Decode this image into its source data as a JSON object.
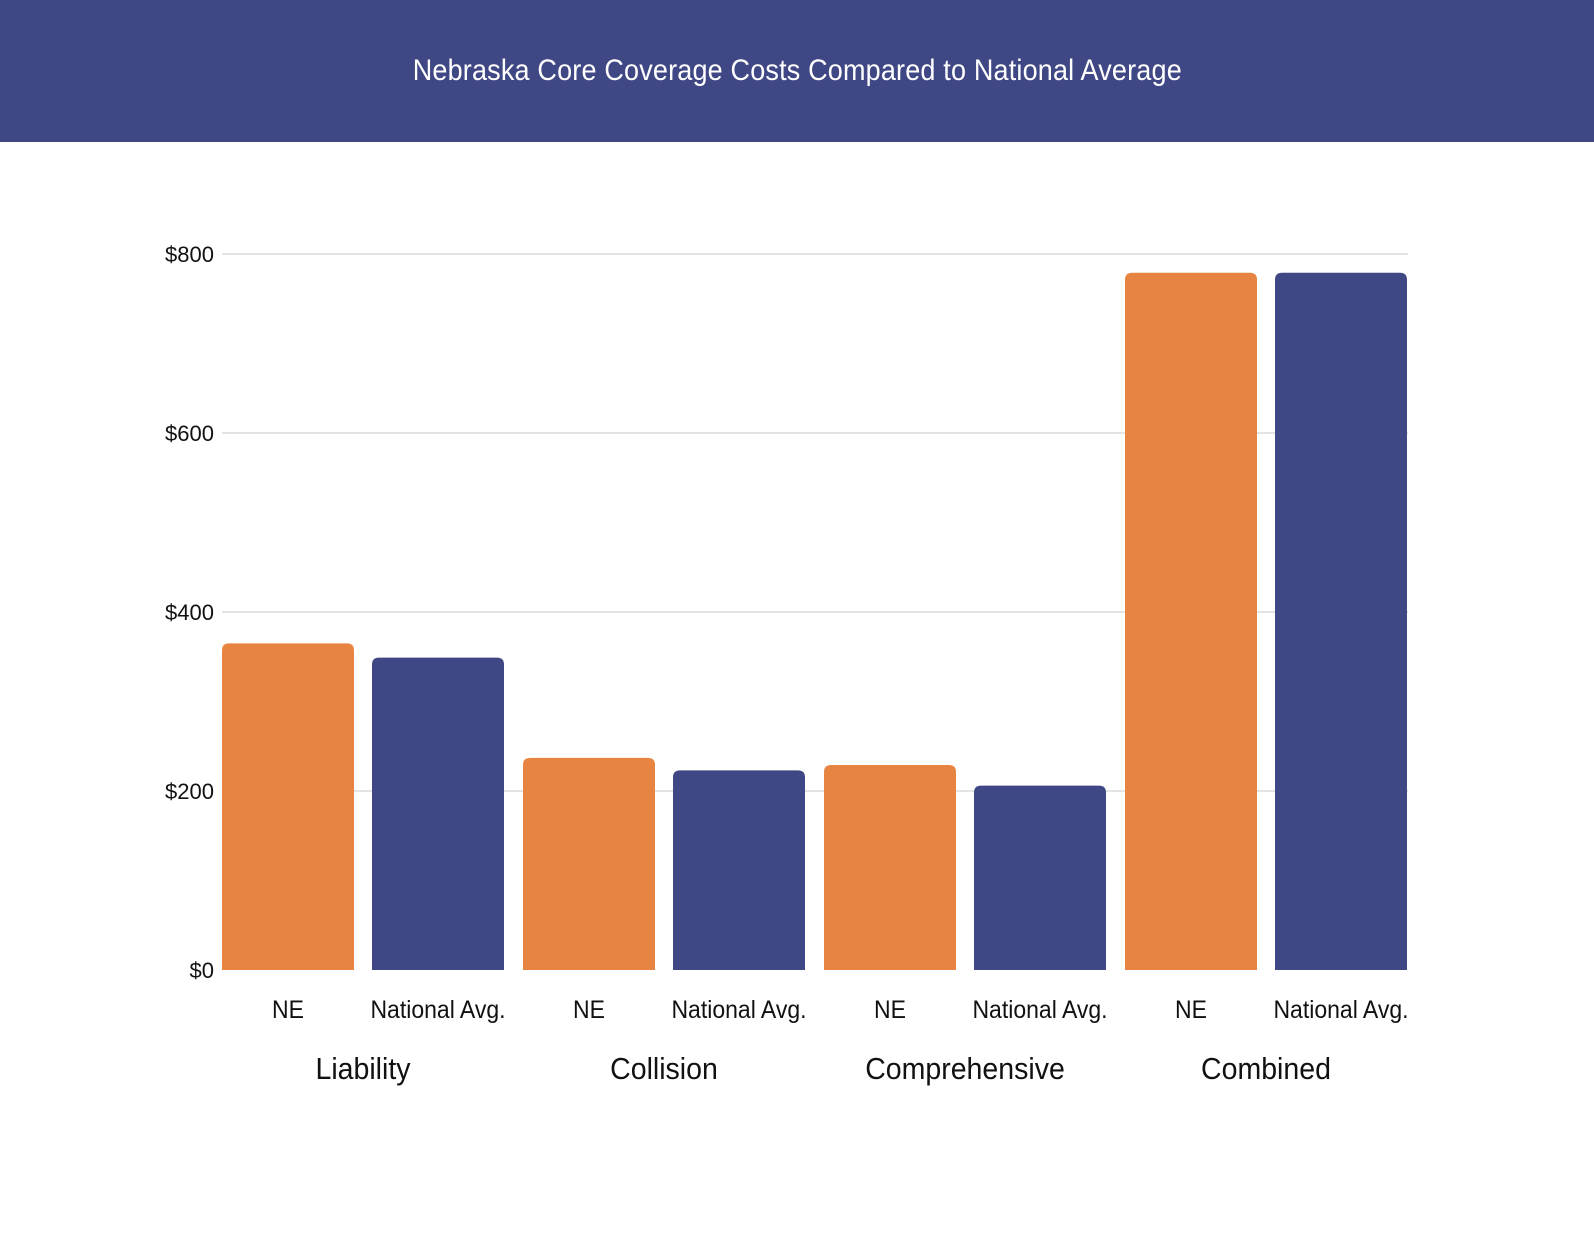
{
  "header": {
    "title": "Nebraska Core Coverage Costs Compared to National Average"
  },
  "colors": {
    "header_bg": "#3f4784",
    "ne": "#e88441",
    "national": "#3f4784",
    "grid": "#c8c8c8"
  },
  "chart_data": {
    "type": "bar",
    "title": "Nebraska Core Coverage Costs Compared to National Average",
    "xlabel": "",
    "ylabel": "",
    "ylim": [
      0,
      800
    ],
    "yticks": [
      0,
      200,
      400,
      600,
      800
    ],
    "ytick_labels": [
      "$0",
      "$200",
      "$400",
      "$600",
      "$800"
    ],
    "grid": true,
    "categories": [
      "Liability",
      "Collision",
      "Comprehensive",
      "Combined"
    ],
    "series": [
      {
        "name": "NE",
        "label": "NE",
        "color": "#e88441",
        "values": [
          365,
          237,
          229,
          779
        ]
      },
      {
        "name": "National Avg.",
        "label": "National Avg.",
        "color": "#3f4784",
        "values": [
          349,
          223,
          206,
          779
        ]
      }
    ]
  }
}
